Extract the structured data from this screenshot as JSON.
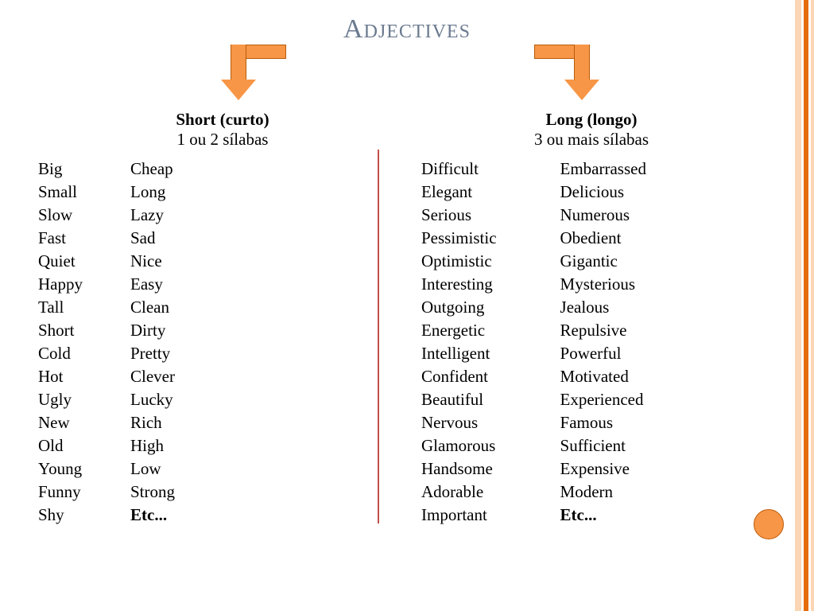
{
  "title": "Adjectives",
  "colors": {
    "title_color": "#6b7a8f",
    "arrow_fill": "#f79646",
    "arrow_border": "#b85c0a",
    "divider": "#c0504d",
    "border_light": "#fcd5b4",
    "border_dark": "#e46c0a",
    "text": "#000000",
    "background": "#ffffff"
  },
  "short_header": {
    "title": "Short (curto)",
    "sub": "1 ou 2 sílabas"
  },
  "long_header": {
    "title": "Long (longo)",
    "sub": "3 ou mais sílabas"
  },
  "short_col1": [
    "Big",
    "Small",
    "Slow",
    "Fast",
    "Quiet",
    "Happy",
    "Tall",
    "Short",
    "Cold",
    "Hot",
    "Ugly",
    "New",
    "Old",
    "Young",
    "Funny",
    "Shy"
  ],
  "short_col2": [
    "Cheap",
    "Long",
    "Lazy",
    "Sad",
    "Nice",
    "Easy",
    "Clean",
    "Dirty",
    "Pretty",
    "Clever",
    "Lucky",
    "Rich",
    "High",
    "Low",
    "Strong"
  ],
  "long_col1": [
    "Difficult",
    "Elegant",
    "Serious",
    "Pessimistic",
    "Optimistic",
    "Interesting",
    "Outgoing",
    "Energetic",
    "Intelligent",
    "Confident",
    "Beautiful",
    "Nervous",
    "Glamorous",
    "Handsome",
    "Adorable",
    "Important"
  ],
  "long_col2": [
    "Embarrassed",
    "Delicious",
    "Numerous",
    "Obedient",
    "Gigantic",
    "Mysterious",
    "Jealous",
    "Repulsive",
    "Powerful",
    "Motivated",
    "Experienced",
    "Famous",
    "Sufficient",
    "Expensive",
    "Modern"
  ],
  "etc_label": "Etc..."
}
